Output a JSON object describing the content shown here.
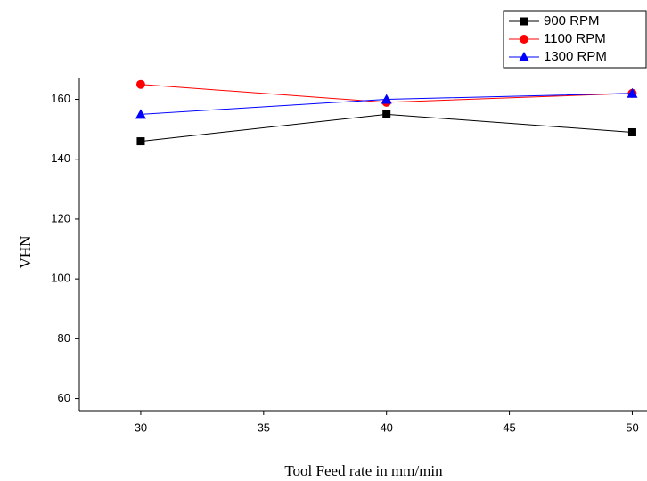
{
  "chart_data": {
    "type": "line",
    "x_label": "Tool Feed rate in mm/min",
    "y_label": "VHN",
    "x": [
      30,
      40,
      50
    ],
    "series": [
      {
        "name": "900 RPM",
        "color": "#000000",
        "marker": "square",
        "values": [
          146,
          155,
          149
        ]
      },
      {
        "name": "1100 RPM",
        "color": "#ff0000",
        "marker": "circle",
        "values": [
          165,
          159,
          162
        ]
      },
      {
        "name": "1300 RPM",
        "color": "#0000ff",
        "marker": "triangle",
        "values": [
          155,
          160,
          162
        ]
      }
    ],
    "xlim": [
      27.5,
      50.6
    ],
    "xticks": [
      30,
      35,
      40,
      45,
      50
    ],
    "ylim": [
      56,
      167
    ],
    "yticks": [
      60,
      80,
      100,
      120,
      140,
      160
    ],
    "legend": "top-right"
  }
}
